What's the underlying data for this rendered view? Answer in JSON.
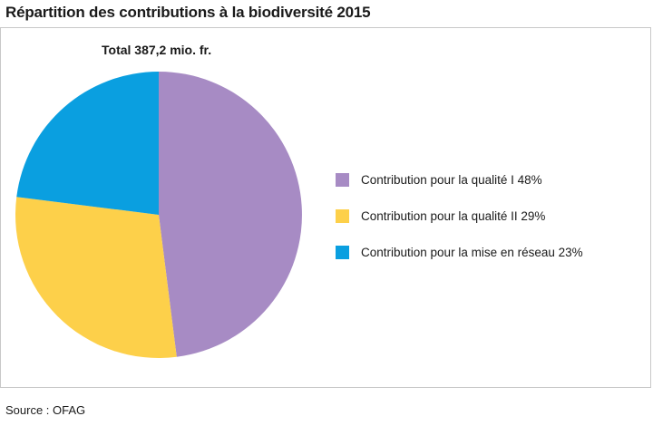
{
  "title": "Répartition des contributions à la biodiversité 2015",
  "source": "Source : OFAG",
  "chart_data": {
    "type": "pie",
    "title": "Total 387,2 mio. fr.",
    "unit": "%",
    "slices": [
      {
        "label": "Contribution pour la qualité I 48%",
        "value": 48,
        "color": "#a78bc4"
      },
      {
        "label": "Contribution pour la qualité II 29%",
        "value": 29,
        "color": "#fdd04a"
      },
      {
        "label": "Contribution pour la mise en réseau 23%",
        "value": 23,
        "color": "#0a9fe0"
      }
    ],
    "legend": "right"
  }
}
